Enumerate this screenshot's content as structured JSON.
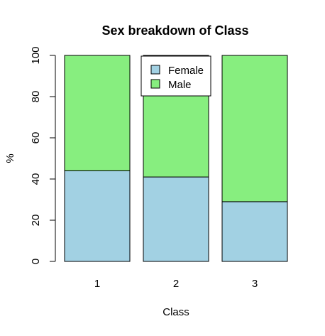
{
  "chart_data": {
    "type": "bar",
    "stacked": true,
    "title": "Sex breakdown of Class",
    "xlabel": "Class",
    "ylabel": "%",
    "categories": [
      "1",
      "2",
      "3"
    ],
    "ylim": [
      0,
      100
    ],
    "yticks": [
      "0",
      "20",
      "40",
      "60",
      "80",
      "100"
    ],
    "series": [
      {
        "name": "Female",
        "values": [
          44,
          41,
          29
        ],
        "color": "#a2d1e3"
      },
      {
        "name": "Male",
        "values": [
          56,
          59,
          71
        ],
        "color": "#87ee7f"
      }
    ],
    "legend_position": "top-center",
    "grid": false
  }
}
